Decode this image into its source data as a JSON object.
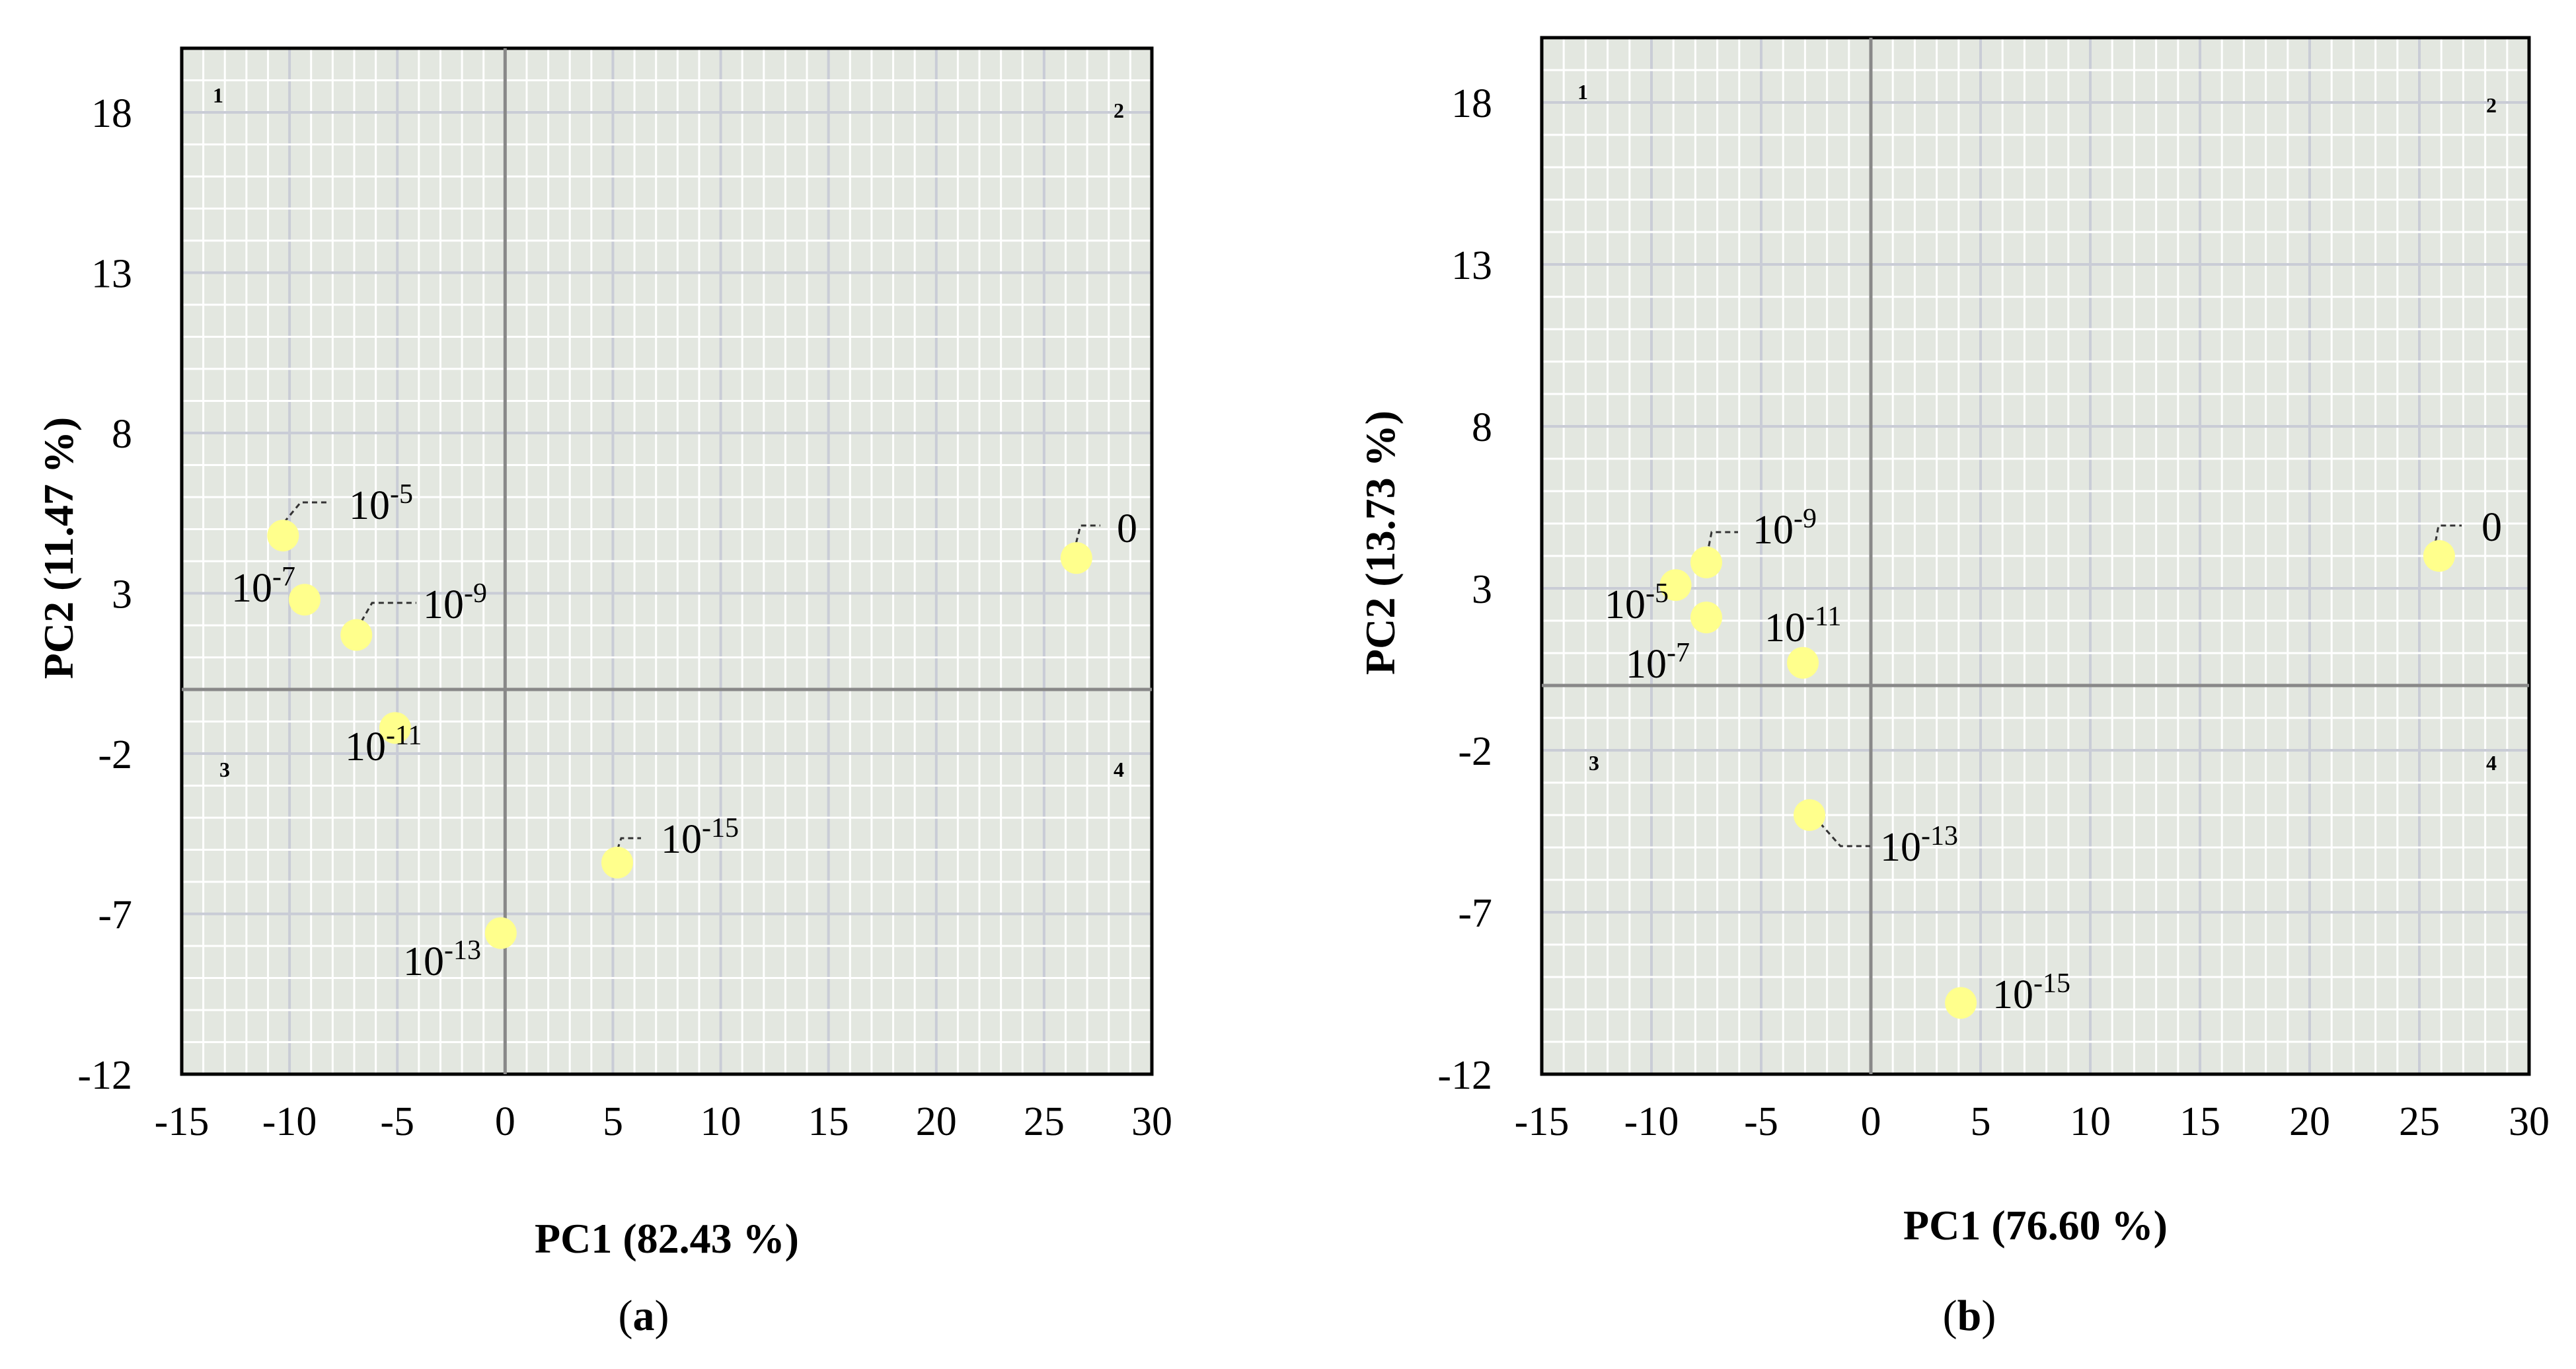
{
  "figure": {
    "point_color": "#ffff8c",
    "plot_bg": "#e3e7e0",
    "grid_minor": "#ffffff",
    "grid_major": "#c9ccd6",
    "axis_color": "#888888"
  },
  "chart_data": [
    {
      "type": "scatter",
      "panel_label": "a",
      "xlabel": "PC1 (82.43 %)",
      "ylabel": "PC2 (11.47 %)",
      "xlim": [
        -15,
        30
      ],
      "ylim": [
        -12,
        20
      ],
      "xticks": [
        -15,
        -10,
        -5,
        0,
        5,
        10,
        15,
        20,
        25,
        30
      ],
      "yticks": [
        18,
        13,
        8,
        3,
        -2,
        -7,
        -12
      ],
      "quadrants": [
        "1",
        "2",
        "3",
        "4"
      ],
      "points": [
        {
          "base": "10",
          "exp": "-5",
          "x": -10.3,
          "y": 4.8
        },
        {
          "base": "10",
          "exp": "-7",
          "x": -9.3,
          "y": 2.8
        },
        {
          "base": "10",
          "exp": "-9",
          "x": -6.9,
          "y": 1.7
        },
        {
          "base": "10",
          "exp": "-11",
          "x": -5.1,
          "y": -1.2
        },
        {
          "base": "10",
          "exp": "-13",
          "x": -0.2,
          "y": -7.6
        },
        {
          "base": "10",
          "exp": "-15",
          "x": 5.2,
          "y": -5.4
        },
        {
          "base": "0",
          "exp": "",
          "x": 26.5,
          "y": 4.1
        }
      ]
    },
    {
      "type": "scatter",
      "panel_label": "b",
      "xlabel": "PC1 (76.60 %)",
      "ylabel": "PC2 (13.73 %)",
      "xlim": [
        -15,
        30
      ],
      "ylim": [
        -12,
        20
      ],
      "xticks": [
        -15,
        -10,
        -5,
        0,
        5,
        10,
        15,
        20,
        25,
        30
      ],
      "yticks": [
        18,
        13,
        8,
        3,
        -2,
        -7,
        -12
      ],
      "quadrants": [
        "1",
        "2",
        "3",
        "4"
      ],
      "points": [
        {
          "base": "10",
          "exp": "-5",
          "x": -8.9,
          "y": 3.1
        },
        {
          "base": "10",
          "exp": "-7",
          "x": -7.5,
          "y": 2.1
        },
        {
          "base": "10",
          "exp": "-9",
          "x": -7.5,
          "y": 3.8
        },
        {
          "base": "10",
          "exp": "-11",
          "x": -3.1,
          "y": 0.7
        },
        {
          "base": "10",
          "exp": "-13",
          "x": -2.8,
          "y": -4.0
        },
        {
          "base": "10",
          "exp": "-15",
          "x": 4.1,
          "y": -9.8
        },
        {
          "base": "0",
          "exp": "",
          "x": 25.9,
          "y": 4.0
        }
      ]
    }
  ]
}
